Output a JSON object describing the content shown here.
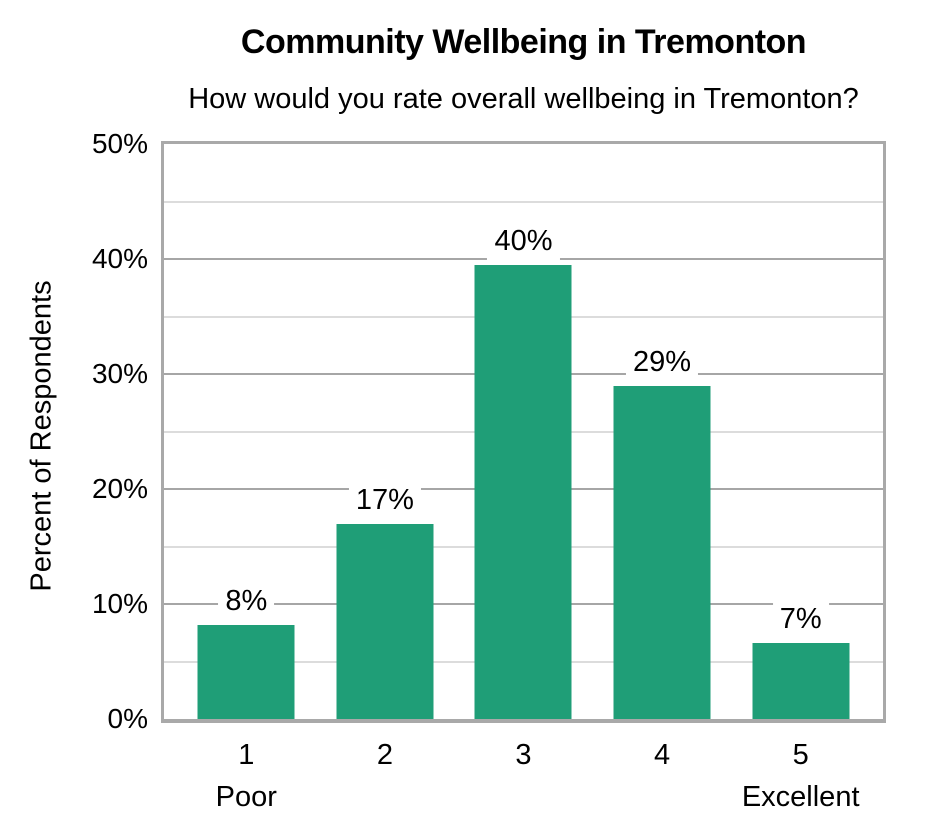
{
  "chart_data": {
    "type": "bar",
    "title": "Community Wellbeing in Tremonton",
    "subtitle": "How would you rate overall wellbeing in Tremonton?",
    "ylabel": "Percent of Respondents",
    "xlabel": "",
    "categories": [
      "1",
      "2",
      "3",
      "4",
      "5"
    ],
    "category_sublabels": [
      "Poor",
      "",
      "",
      "",
      "Excellent"
    ],
    "values": [
      8,
      17,
      40,
      29,
      7
    ],
    "value_labels": [
      "8%",
      "17%",
      "40%",
      "29%",
      "7%"
    ],
    "rendered_bar_heights_pct": [
      8.2,
      17,
      39.5,
      29,
      6.6
    ],
    "ylim": [
      0,
      50
    ],
    "ytick_labels": [
      "0%",
      "10%",
      "20%",
      "30%",
      "40%",
      "50%"
    ],
    "ytick_step_major": 10,
    "ytick_step_minor": 5,
    "grid": "horizontal major and minor gridlines, plot border box, no vertical gridlines",
    "legend": "none",
    "bar_color": "#1f9e77",
    "major_grid_color": "#a6a6a6",
    "minor_grid_color": "#dcdcdc",
    "axis_border_color": "#a9a9a9",
    "text_color": "#000000",
    "background_color": "#ffffff"
  }
}
